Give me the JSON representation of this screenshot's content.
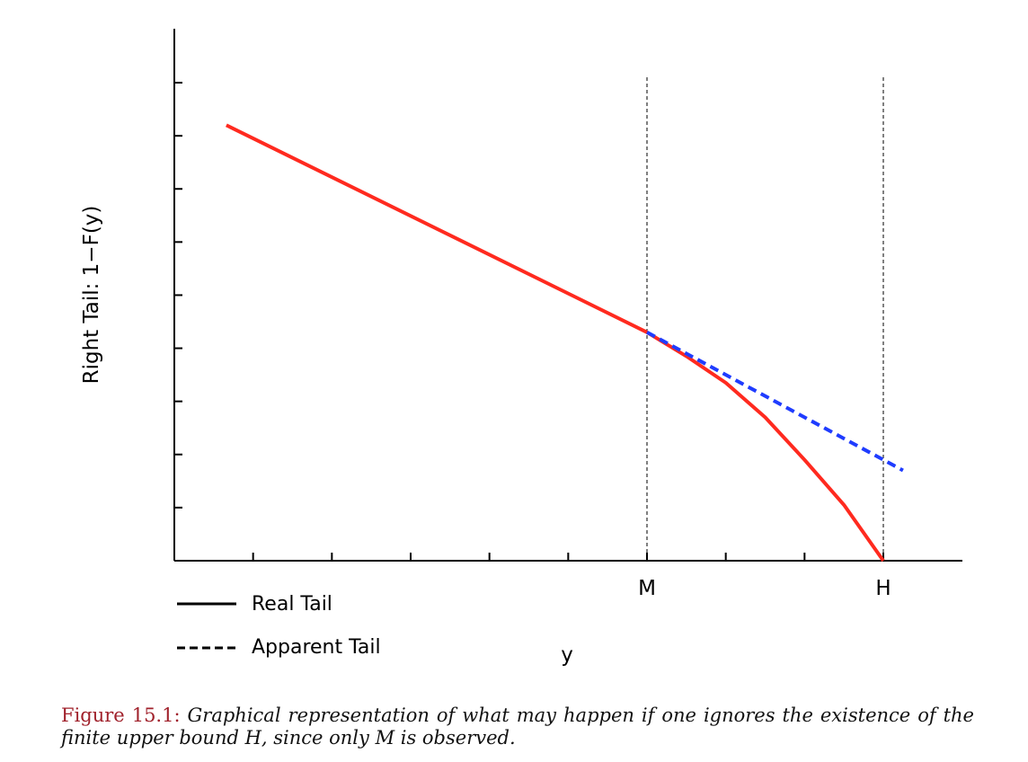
{
  "chart_data": {
    "type": "line",
    "ylabel": "Right Tail: 1−F(y)",
    "xlabel": "y",
    "xlim": [
      0,
      10
    ],
    "ylim": [
      0,
      10
    ],
    "y_tick_count": 9,
    "x_tick_count": 9,
    "x_marker_labels": [
      {
        "label": "M",
        "x": 6
      },
      {
        "label": "H",
        "x": 9
      }
    ],
    "series": [
      {
        "name": "Real Tail",
        "style": "solid",
        "color": "#ff2a1f",
        "points": [
          [
            0.66,
            8.2
          ],
          [
            6.0,
            4.3
          ],
          [
            6.5,
            3.85
          ],
          [
            7.0,
            3.35
          ],
          [
            7.5,
            2.7
          ],
          [
            8.0,
            1.9
          ],
          [
            8.5,
            1.05
          ],
          [
            9.0,
            0.0
          ]
        ]
      },
      {
        "name": "Apparent Tail",
        "style": "dashed",
        "color": "#1f3cff",
        "points": [
          [
            6.0,
            4.3
          ],
          [
            9.25,
            1.7
          ]
        ]
      }
    ],
    "vertical_reference_lines": [
      6,
      9
    ],
    "legend_placement": "bottom-left"
  },
  "caption": {
    "label": "Figure 15.1:",
    "text": "Graphical representation of what may happen if one ignores the existence of the finite upper bound H, since only M is observed."
  }
}
